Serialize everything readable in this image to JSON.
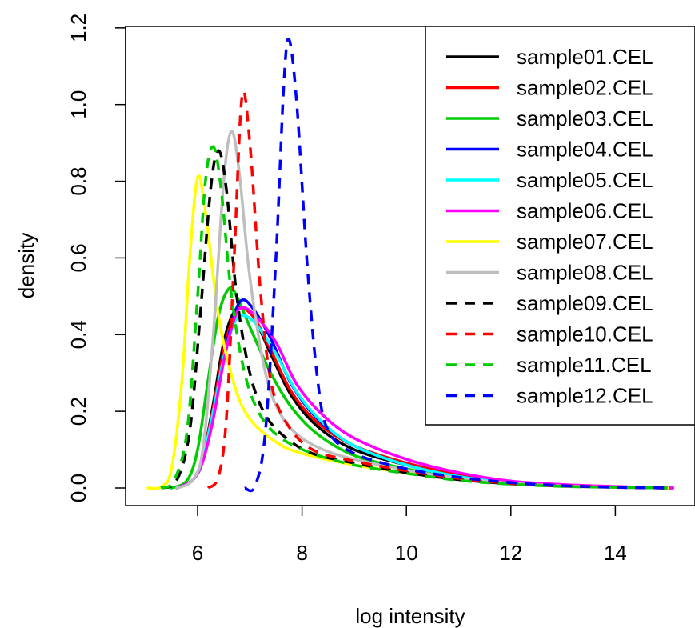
{
  "chart_data": {
    "type": "line",
    "title": "",
    "xlabel": "log intensity",
    "ylabel": "density",
    "xlim": [
      4.75,
      15.2
    ],
    "ylim": [
      -0.05,
      1.2
    ],
    "xticks": [
      6,
      8,
      10,
      12,
      14
    ],
    "yticks": [
      0.0,
      0.2,
      0.4,
      0.6,
      0.8,
      1.0,
      1.2
    ],
    "grid": false,
    "legend": "top-right",
    "series": [
      {
        "name": "sample01.CEL",
        "color": "#000000",
        "dash": "solid",
        "points": [
          [
            5.6,
            0
          ],
          [
            5.9,
            0.02
          ],
          [
            6.1,
            0.08
          ],
          [
            6.3,
            0.22
          ],
          [
            6.5,
            0.38
          ],
          [
            6.7,
            0.46
          ],
          [
            6.9,
            0.47
          ],
          [
            7.1,
            0.44
          ],
          [
            7.4,
            0.35
          ],
          [
            7.8,
            0.24
          ],
          [
            8.3,
            0.16
          ],
          [
            9.0,
            0.1
          ],
          [
            10,
            0.06
          ],
          [
            11,
            0.03
          ],
          [
            12,
            0.014
          ],
          [
            13,
            0.007
          ],
          [
            14,
            0.003
          ],
          [
            15.1,
            0
          ]
        ]
      },
      {
        "name": "sample02.CEL",
        "color": "#ff0000",
        "dash": "solid",
        "points": [
          [
            5.6,
            0
          ],
          [
            5.9,
            0.02
          ],
          [
            6.1,
            0.08
          ],
          [
            6.3,
            0.21
          ],
          [
            6.5,
            0.36
          ],
          [
            6.7,
            0.45
          ],
          [
            6.85,
            0.47
          ],
          [
            7.1,
            0.44
          ],
          [
            7.4,
            0.36
          ],
          [
            7.8,
            0.25
          ],
          [
            8.3,
            0.17
          ],
          [
            9.0,
            0.11
          ],
          [
            10,
            0.065
          ],
          [
            11,
            0.035
          ],
          [
            12,
            0.016
          ],
          [
            13,
            0.008
          ],
          [
            14,
            0.003
          ],
          [
            15.1,
            0
          ]
        ]
      },
      {
        "name": "sample03.CEL",
        "color": "#00cc00",
        "dash": "solid",
        "points": [
          [
            5.5,
            0
          ],
          [
            5.8,
            0.02
          ],
          [
            6.0,
            0.1
          ],
          [
            6.2,
            0.28
          ],
          [
            6.4,
            0.45
          ],
          [
            6.6,
            0.52
          ],
          [
            6.75,
            0.5
          ],
          [
            7.0,
            0.42
          ],
          [
            7.4,
            0.3
          ],
          [
            7.8,
            0.21
          ],
          [
            8.3,
            0.14
          ],
          [
            9.0,
            0.085
          ],
          [
            10,
            0.05
          ],
          [
            11,
            0.025
          ],
          [
            12,
            0.012
          ],
          [
            13,
            0.006
          ],
          [
            14,
            0.002
          ],
          [
            15.1,
            0
          ]
        ]
      },
      {
        "name": "sample04.CEL",
        "color": "#0000ff",
        "dash": "solid",
        "points": [
          [
            5.6,
            0
          ],
          [
            5.9,
            0.02
          ],
          [
            6.1,
            0.07
          ],
          [
            6.3,
            0.19
          ],
          [
            6.5,
            0.34
          ],
          [
            6.7,
            0.45
          ],
          [
            6.85,
            0.49
          ],
          [
            7.05,
            0.47
          ],
          [
            7.4,
            0.39
          ],
          [
            7.8,
            0.27
          ],
          [
            8.3,
            0.18
          ],
          [
            9.0,
            0.11
          ],
          [
            10,
            0.06
          ],
          [
            11,
            0.03
          ],
          [
            12,
            0.014
          ],
          [
            13,
            0.007
          ],
          [
            14,
            0.003
          ],
          [
            15.1,
            0
          ]
        ]
      },
      {
        "name": "sample05.CEL",
        "color": "#00ffff",
        "dash": "solid",
        "points": [
          [
            5.6,
            0
          ],
          [
            5.9,
            0.02
          ],
          [
            6.1,
            0.08
          ],
          [
            6.3,
            0.2
          ],
          [
            6.5,
            0.34
          ],
          [
            6.7,
            0.43
          ],
          [
            6.85,
            0.45
          ],
          [
            7.1,
            0.43
          ],
          [
            7.5,
            0.35
          ],
          [
            7.9,
            0.25
          ],
          [
            8.4,
            0.17
          ],
          [
            9.0,
            0.11
          ],
          [
            10,
            0.06
          ],
          [
            11,
            0.03
          ],
          [
            12,
            0.014
          ],
          [
            13,
            0.007
          ],
          [
            14,
            0.003
          ],
          [
            15.1,
            0
          ]
        ]
      },
      {
        "name": "sample06.CEL",
        "color": "#ff00ff",
        "dash": "solid",
        "points": [
          [
            5.6,
            0
          ],
          [
            5.9,
            0.02
          ],
          [
            6.1,
            0.07
          ],
          [
            6.3,
            0.18
          ],
          [
            6.5,
            0.33
          ],
          [
            6.7,
            0.44
          ],
          [
            6.85,
            0.47
          ],
          [
            7.1,
            0.45
          ],
          [
            7.5,
            0.38
          ],
          [
            7.9,
            0.27
          ],
          [
            8.4,
            0.19
          ],
          [
            9.0,
            0.13
          ],
          [
            10,
            0.075
          ],
          [
            11,
            0.04
          ],
          [
            12,
            0.018
          ],
          [
            13,
            0.009
          ],
          [
            14,
            0.004
          ],
          [
            15.1,
            0
          ]
        ]
      },
      {
        "name": "sample07.CEL",
        "color": "#ffff00",
        "dash": "solid",
        "points": [
          [
            5.05,
            0
          ],
          [
            5.3,
            0.003
          ],
          [
            5.5,
            0.05
          ],
          [
            5.7,
            0.28
          ],
          [
            5.85,
            0.6
          ],
          [
            6.0,
            0.81
          ],
          [
            6.15,
            0.72
          ],
          [
            6.4,
            0.45
          ],
          [
            6.7,
            0.27
          ],
          [
            7.0,
            0.18
          ],
          [
            7.5,
            0.12
          ],
          [
            8.0,
            0.09
          ],
          [
            9.0,
            0.06
          ],
          [
            10,
            0.04
          ],
          [
            11,
            0.022
          ],
          [
            12,
            0.012
          ],
          [
            13,
            0.005
          ],
          [
            14,
            0.002
          ],
          [
            15,
            0
          ]
        ]
      },
      {
        "name": "sample08.CEL",
        "color": "#bebebe",
        "dash": "solid",
        "points": [
          [
            5.6,
            0
          ],
          [
            5.9,
            0.02
          ],
          [
            6.1,
            0.1
          ],
          [
            6.3,
            0.4
          ],
          [
            6.5,
            0.8
          ],
          [
            6.65,
            0.93
          ],
          [
            6.8,
            0.82
          ],
          [
            7.0,
            0.55
          ],
          [
            7.3,
            0.3
          ],
          [
            7.6,
            0.19
          ],
          [
            8.0,
            0.13
          ],
          [
            8.6,
            0.09
          ],
          [
            9.5,
            0.06
          ],
          [
            10.5,
            0.035
          ],
          [
            11.5,
            0.018
          ],
          [
            12.5,
            0.008
          ],
          [
            13.5,
            0.003
          ],
          [
            14.5,
            0
          ]
        ]
      },
      {
        "name": "sample09.CEL",
        "color": "#000000",
        "dash": "dashed",
        "points": [
          [
            5.3,
            0
          ],
          [
            5.6,
            0.02
          ],
          [
            5.85,
            0.15
          ],
          [
            6.05,
            0.45
          ],
          [
            6.25,
            0.78
          ],
          [
            6.4,
            0.88
          ],
          [
            6.55,
            0.78
          ],
          [
            6.75,
            0.5
          ],
          [
            7.0,
            0.3
          ],
          [
            7.3,
            0.19
          ],
          [
            7.7,
            0.13
          ],
          [
            8.2,
            0.09
          ],
          [
            9.0,
            0.065
          ],
          [
            10,
            0.04
          ],
          [
            11,
            0.022
          ],
          [
            12,
            0.011
          ],
          [
            13,
            0.005
          ],
          [
            14,
            0.002
          ],
          [
            15,
            0
          ]
        ]
      },
      {
        "name": "sample10.CEL",
        "color": "#ff0000",
        "dash": "dashed",
        "points": [
          [
            6.2,
            0
          ],
          [
            6.4,
            0.03
          ],
          [
            6.55,
            0.18
          ],
          [
            6.7,
            0.6
          ],
          [
            6.85,
            1.02
          ],
          [
            7.0,
            0.9
          ],
          [
            7.2,
            0.52
          ],
          [
            7.4,
            0.28
          ],
          [
            7.7,
            0.17
          ],
          [
            8.2,
            0.1
          ],
          [
            9.0,
            0.07
          ],
          [
            10,
            0.045
          ],
          [
            11,
            0.025
          ],
          [
            12,
            0.012
          ],
          [
            13,
            0.006
          ],
          [
            14,
            0.002
          ],
          [
            15,
            0
          ]
        ]
      },
      {
        "name": "sample11.CEL",
        "color": "#00cc00",
        "dash": "dashed",
        "points": [
          [
            5.3,
            0
          ],
          [
            5.55,
            0.02
          ],
          [
            5.8,
            0.15
          ],
          [
            6.0,
            0.5
          ],
          [
            6.15,
            0.8
          ],
          [
            6.3,
            0.89
          ],
          [
            6.45,
            0.78
          ],
          [
            6.65,
            0.5
          ],
          [
            6.9,
            0.3
          ],
          [
            7.2,
            0.19
          ],
          [
            7.6,
            0.13
          ],
          [
            8.2,
            0.09
          ],
          [
            9.0,
            0.06
          ],
          [
            10,
            0.038
          ],
          [
            11,
            0.02
          ],
          [
            12,
            0.01
          ],
          [
            13,
            0.004
          ],
          [
            14,
            0.002
          ],
          [
            15,
            0
          ]
        ]
      },
      {
        "name": "sample12.CEL",
        "color": "#0000ff",
        "dash": "dashed",
        "points": [
          [
            6.9,
            0
          ],
          [
            7.1,
            0.005
          ],
          [
            7.3,
            0.15
          ],
          [
            7.5,
            0.6
          ],
          [
            7.65,
            1.05
          ],
          [
            7.75,
            1.17
          ],
          [
            7.9,
            1.0
          ],
          [
            8.1,
            0.58
          ],
          [
            8.3,
            0.28
          ],
          [
            8.5,
            0.15
          ],
          [
            9.0,
            0.09
          ],
          [
            10,
            0.05
          ],
          [
            11,
            0.028
          ],
          [
            12,
            0.014
          ],
          [
            13,
            0.006
          ],
          [
            14,
            0.002
          ],
          [
            15,
            0
          ]
        ]
      }
    ]
  }
}
